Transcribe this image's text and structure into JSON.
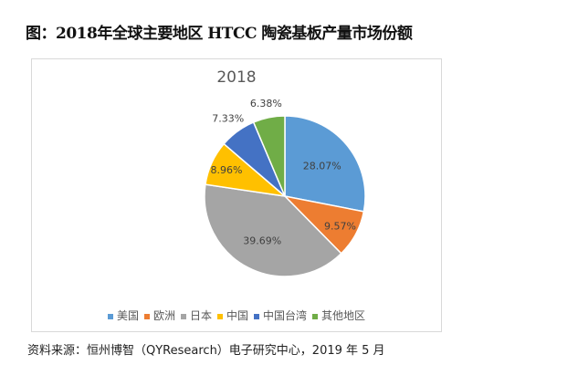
{
  "title": "图：2018年全球主要地区 HTCC 陶瓷基板产量市场份额",
  "source": "资料来源：恒州博智（QYResearch）电子研究中心，2019 年 5 月",
  "chart_data": {
    "type": "pie",
    "title": "2018",
    "categories": [
      "美国",
      "欧洲",
      "日本",
      "中国",
      "中国台湾",
      "其他地区"
    ],
    "values": [
      28.07,
      9.57,
      39.69,
      8.96,
      7.33,
      6.38
    ],
    "labels": [
      "28.07%",
      "9.57%",
      "39.69%",
      "8.96%",
      "7.33%",
      "6.38%"
    ],
    "colors": [
      "#5b9bd5",
      "#ed7d31",
      "#a5a5a5",
      "#ffc000",
      "#4472c4",
      "#70ad47"
    ],
    "legend": "bottom",
    "start": "top, clockwise"
  }
}
